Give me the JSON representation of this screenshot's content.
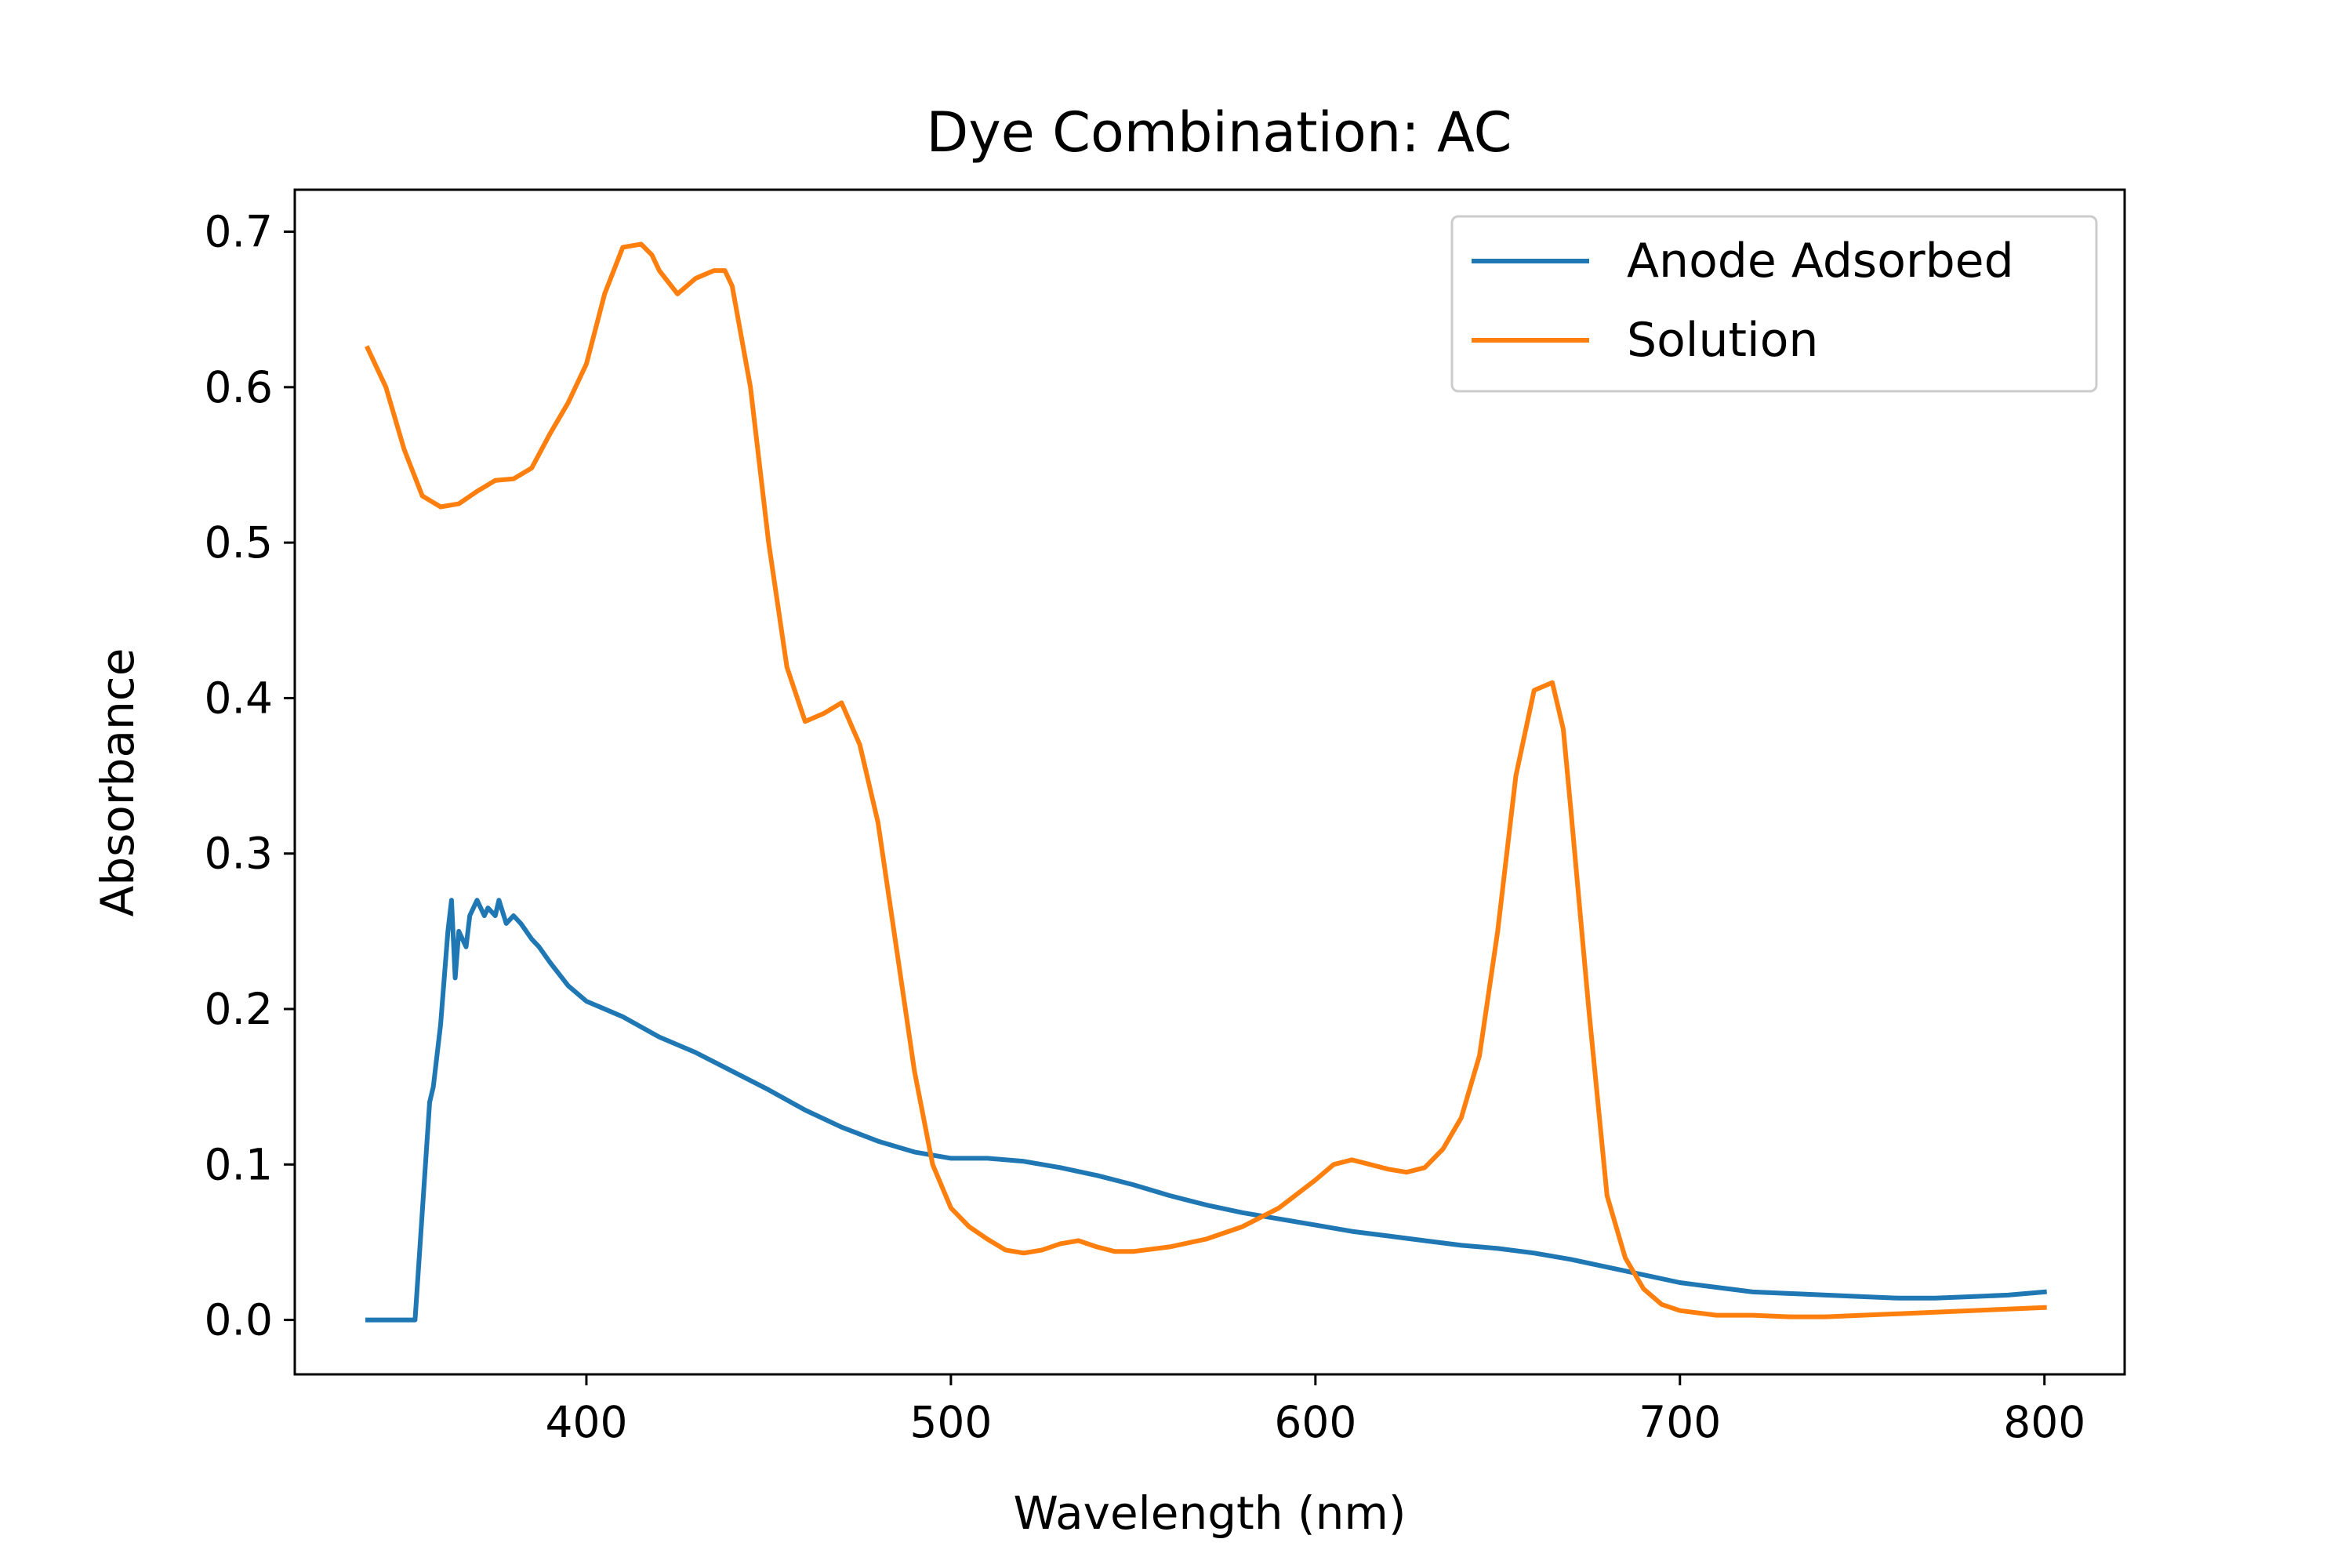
{
  "chart_data": {
    "type": "line",
    "title": "Dye Combination: AC",
    "xlabel": "Wavelength (nm)",
    "ylabel": "Absorbance",
    "xlim": [
      320,
      822
    ],
    "ylim": [
      -0.035,
      0.727
    ],
    "xticks": [
      400,
      500,
      600,
      700,
      800
    ],
    "yticks": [
      0.0,
      0.1,
      0.2,
      0.3,
      0.4,
      0.5,
      0.6,
      0.7
    ],
    "xtick_labels": [
      "400",
      "500",
      "600",
      "700",
      "800"
    ],
    "ytick_labels": [
      "0.0",
      "0.1",
      "0.2",
      "0.3",
      "0.4",
      "0.5",
      "0.6",
      "0.7"
    ],
    "grid": false,
    "legend_position": "top-right",
    "series": [
      {
        "name": "Anode Adsorbed",
        "color": "#1f77b4",
        "x": [
          340,
          345,
          350,
          353,
          355,
          357,
          358,
          360,
          362,
          363,
          364,
          365,
          367,
          368,
          370,
          372,
          373,
          375,
          376,
          378,
          380,
          382,
          385,
          387,
          390,
          395,
          400,
          410,
          420,
          430,
          440,
          450,
          460,
          470,
          480,
          490,
          500,
          510,
          520,
          530,
          540,
          550,
          560,
          570,
          580,
          590,
          600,
          610,
          620,
          630,
          640,
          650,
          660,
          670,
          680,
          690,
          700,
          710,
          720,
          730,
          740,
          750,
          760,
          770,
          780,
          790,
          800
        ],
        "y": [
          0.0,
          0.0,
          0.0,
          0.0,
          0.07,
          0.14,
          0.15,
          0.19,
          0.25,
          0.27,
          0.22,
          0.25,
          0.24,
          0.26,
          0.27,
          0.26,
          0.265,
          0.26,
          0.27,
          0.255,
          0.26,
          0.255,
          0.245,
          0.24,
          0.23,
          0.215,
          0.205,
          0.195,
          0.182,
          0.172,
          0.16,
          0.148,
          0.135,
          0.124,
          0.115,
          0.108,
          0.104,
          0.104,
          0.102,
          0.098,
          0.093,
          0.087,
          0.08,
          0.074,
          0.069,
          0.065,
          0.061,
          0.057,
          0.054,
          0.051,
          0.048,
          0.046,
          0.043,
          0.039,
          0.034,
          0.029,
          0.024,
          0.021,
          0.018,
          0.017,
          0.016,
          0.015,
          0.014,
          0.014,
          0.015,
          0.016,
          0.018
        ]
      },
      {
        "name": "Solution",
        "color": "#ff7f0e",
        "x": [
          340,
          345,
          350,
          355,
          360,
          365,
          370,
          375,
          380,
          385,
          390,
          395,
          400,
          405,
          410,
          415,
          418,
          420,
          425,
          430,
          435,
          438,
          440,
          445,
          450,
          455,
          460,
          465,
          470,
          475,
          480,
          485,
          490,
          495,
          500,
          505,
          510,
          515,
          520,
          525,
          530,
          535,
          540,
          545,
          550,
          560,
          570,
          580,
          590,
          600,
          605,
          610,
          615,
          620,
          625,
          630,
          635,
          640,
          645,
          650,
          655,
          660,
          665,
          668,
          670,
          675,
          680,
          685,
          690,
          695,
          700,
          710,
          720,
          730,
          740,
          750,
          760,
          770,
          780,
          790,
          800
        ],
        "y": [
          0.625,
          0.6,
          0.56,
          0.53,
          0.523,
          0.525,
          0.533,
          0.54,
          0.541,
          0.548,
          0.57,
          0.59,
          0.615,
          0.66,
          0.69,
          0.692,
          0.685,
          0.675,
          0.66,
          0.67,
          0.675,
          0.675,
          0.665,
          0.6,
          0.5,
          0.42,
          0.385,
          0.39,
          0.397,
          0.37,
          0.32,
          0.24,
          0.16,
          0.1,
          0.072,
          0.06,
          0.052,
          0.045,
          0.043,
          0.045,
          0.049,
          0.051,
          0.047,
          0.044,
          0.044,
          0.047,
          0.052,
          0.06,
          0.072,
          0.09,
          0.1,
          0.103,
          0.1,
          0.097,
          0.095,
          0.098,
          0.11,
          0.13,
          0.17,
          0.25,
          0.35,
          0.405,
          0.41,
          0.38,
          0.33,
          0.2,
          0.08,
          0.04,
          0.02,
          0.01,
          0.006,
          0.003,
          0.003,
          0.002,
          0.002,
          0.003,
          0.004,
          0.005,
          0.006,
          0.007,
          0.008
        ]
      }
    ]
  }
}
